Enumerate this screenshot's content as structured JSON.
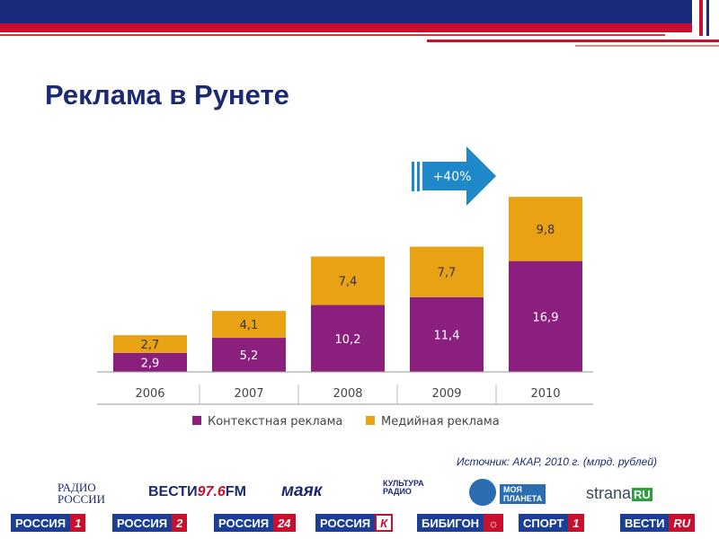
{
  "title": "Реклама в Рунете",
  "source_note": "Источник: АКАР, 2010 г. (млрд. рублей)",
  "growth_badge": "+40%",
  "chart_data": {
    "type": "bar",
    "stacked": true,
    "categories": [
      "2006",
      "2007",
      "2008",
      "2009",
      "2010"
    ],
    "series": [
      {
        "name": "Контекстная реклама",
        "values": [
          2.9,
          5.2,
          10.2,
          11.4,
          16.9
        ],
        "labels": [
          "2,9",
          "5,2",
          "10,2",
          "11,4",
          "16,9"
        ],
        "color": "#8a1f7e"
      },
      {
        "name": "Медийная реклама",
        "values": [
          2.7,
          4.1,
          7.4,
          7.7,
          9.8
        ],
        "labels": [
          "2,7",
          "4,1",
          "7,4",
          "7,7",
          "9,8"
        ],
        "color": "#eaa215"
      }
    ],
    "ylim": [
      0,
      30
    ],
    "grid": false,
    "legend_position": "bottom",
    "arrow_color": "#1e88c8"
  },
  "logos": {
    "radio_rossii_line1": "РАДИО",
    "radio_rossii_line2": "РОССИИ",
    "vesti_fm_text": "ВЕСТИ",
    "vesti_fm_num": "97.6",
    "vesti_fm_suffix": "FM",
    "mayak": "маяк",
    "kultura_line1": "КУЛЬТУРА",
    "kultura_line2": "РАДИО",
    "moya_planeta_line1": "МОЯ",
    "moya_planeta_line2": "ПЛАНЕТА",
    "strana_text": "strana",
    "strana_ru": "RU"
  },
  "channels": [
    {
      "text": "РОССИЯ",
      "mark": "1"
    },
    {
      "text": "РОССИЯ",
      "mark": "2"
    },
    {
      "text": "РОССИЯ",
      "mark": "24"
    },
    {
      "text": "РОССИЯ",
      "mark": "К"
    },
    {
      "text": "БИБИГОН",
      "mark": "☼"
    },
    {
      "text": "СПОРТ",
      "mark": "1"
    },
    {
      "text": "ВЕСТИ",
      "mark": "RU"
    }
  ]
}
